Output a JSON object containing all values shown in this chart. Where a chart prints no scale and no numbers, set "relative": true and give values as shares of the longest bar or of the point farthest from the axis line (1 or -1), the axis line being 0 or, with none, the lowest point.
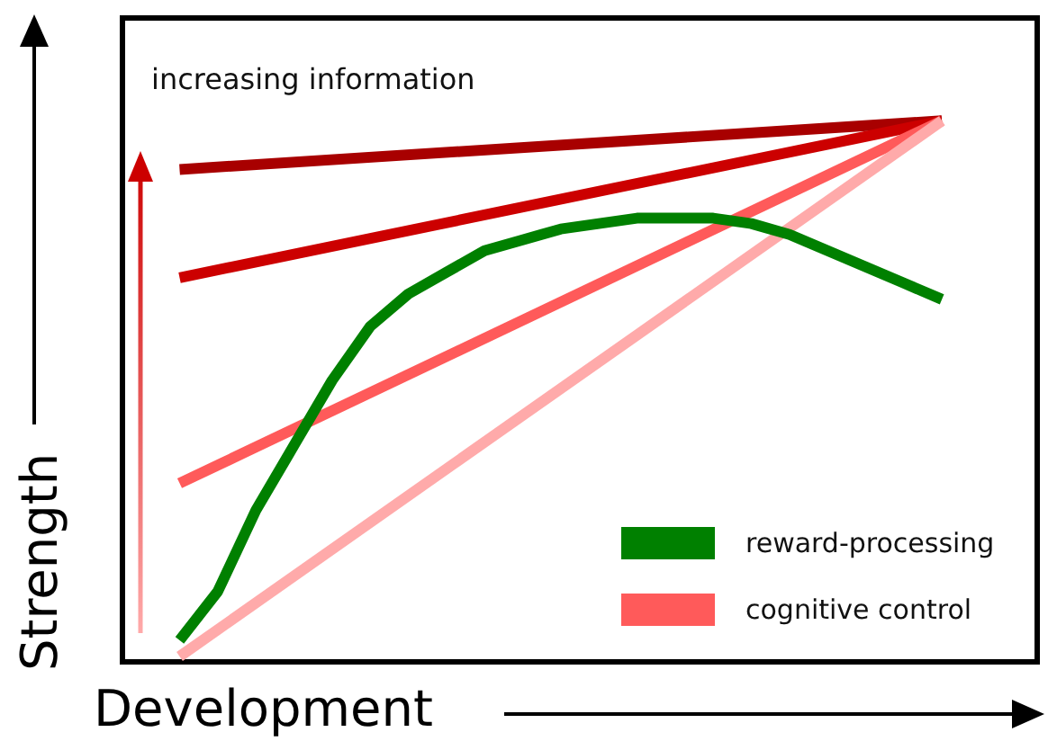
{
  "chart_data": {
    "type": "line",
    "relative": true,
    "xlabel": "Development",
    "ylabel": "Strength",
    "annotations": [
      "increasing information"
    ],
    "categories": [
      null,
      null,
      null,
      null,
      null,
      null,
      null,
      null,
      null,
      null,
      null,
      null,
      null,
      null,
      null,
      null,
      null,
      null,
      null,
      null,
      null,
      null,
      null,
      null
    ],
    "series": [
      {
        "color": "#a80000",
        "values": [
          null,
          0.91,
          null,
          null,
          null,
          null,
          null,
          null,
          null,
          null,
          null,
          null,
          null,
          null,
          null,
          null,
          null,
          null,
          null,
          null,
          null,
          1,
          null,
          null
        ]
      },
      {
        "color": "#cc0000",
        "values": [
          null,
          0.71,
          null,
          null,
          null,
          null,
          null,
          null,
          null,
          null,
          null,
          null,
          null,
          null,
          null,
          null,
          null,
          null,
          null,
          null,
          null,
          1,
          null,
          null
        ]
      },
      {
        "name": "cognitive control",
        "color": "#ff5a5a",
        "values": [
          null,
          0.33,
          null,
          null,
          null,
          null,
          null,
          null,
          null,
          null,
          null,
          null,
          null,
          null,
          null,
          null,
          null,
          null,
          null,
          null,
          null,
          1,
          null,
          null
        ]
      },
      {
        "color": "#ffaaaa",
        "values": [
          null,
          0.01,
          null,
          null,
          null,
          null,
          null,
          null,
          null,
          null,
          null,
          null,
          null,
          null,
          null,
          null,
          null,
          null,
          null,
          null,
          null,
          1,
          null,
          null
        ]
      },
      {
        "name": "reward-processing",
        "color": "#008000",
        "values": [
          null,
          0.04,
          0.13,
          0.28,
          0.4,
          0.52,
          0.62,
          0.68,
          0.72,
          0.76,
          0.78,
          0.8,
          0.81,
          0.82,
          0.82,
          0.82,
          0.81,
          0.79,
          0.76,
          0.73,
          0.7,
          0.67,
          null,
          null
        ]
      }
    ],
    "grid": false,
    "legend": "bottom right",
    "tick_labels": false,
    "marker": "none",
    "line_style": "solid"
  }
}
